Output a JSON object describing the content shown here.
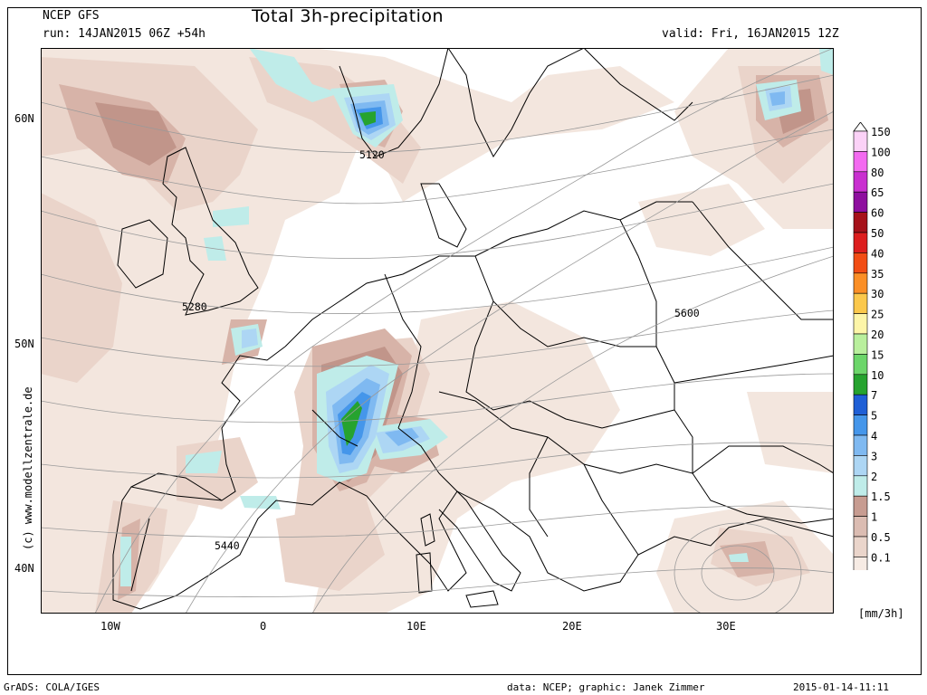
{
  "header": {
    "model": "NCEP GFS",
    "run": "run: 14JAN2015 06Z +54h",
    "title": "Total 3h-precipitation",
    "valid": "valid: Fri, 16JAN2015 12Z"
  },
  "axes": {
    "lat_labels": [
      "60N",
      "50N",
      "40N"
    ],
    "lon_labels": [
      "10W",
      "0",
      "10E",
      "20E",
      "30E"
    ]
  },
  "contour_labels": [
    "5120",
    "5280",
    "5440",
    "5600"
  ],
  "credit": "(c)  www.modellzentrale.de",
  "colorbar": {
    "unit": "[mm/3h]",
    "levels": [
      {
        "label": "150",
        "color": "#fbd2f7"
      },
      {
        "label": "100",
        "color": "#f36af0"
      },
      {
        "label": "80",
        "color": "#c92fd0"
      },
      {
        "label": "65",
        "color": "#8e0f9f"
      },
      {
        "label": "60",
        "color": "#a6121a"
      },
      {
        "label": "50",
        "color": "#dd1e1e"
      },
      {
        "label": "40",
        "color": "#f24d14"
      },
      {
        "label": "35",
        "color": "#fb8f26"
      },
      {
        "label": "30",
        "color": "#fbc84c"
      },
      {
        "label": "25",
        "color": "#fdf5a8"
      },
      {
        "label": "20",
        "color": "#b9ef9d"
      },
      {
        "label": "15",
        "color": "#6cd66a"
      },
      {
        "label": "10",
        "color": "#26a32f"
      },
      {
        "label": "7",
        "color": "#1f5fd6"
      },
      {
        "label": "5",
        "color": "#4596ea"
      },
      {
        "label": "4",
        "color": "#7fb9f1"
      },
      {
        "label": "3",
        "color": "#add6f4"
      },
      {
        "label": "2",
        "color": "#bfece9"
      },
      {
        "label": "1.5",
        "color": "#c79c91"
      },
      {
        "label": "1",
        "color": "#dbbcb2"
      },
      {
        "label": "0.5",
        "color": "#ead5cb"
      },
      {
        "label": "0.1",
        "color": "#f6ebe4"
      }
    ]
  },
  "footer": {
    "left": "GrADS: COLA/IGES",
    "data": "data: NCEP; graphic: Janek Zimmer",
    "stamp": "2015-01-14-11:11"
  }
}
